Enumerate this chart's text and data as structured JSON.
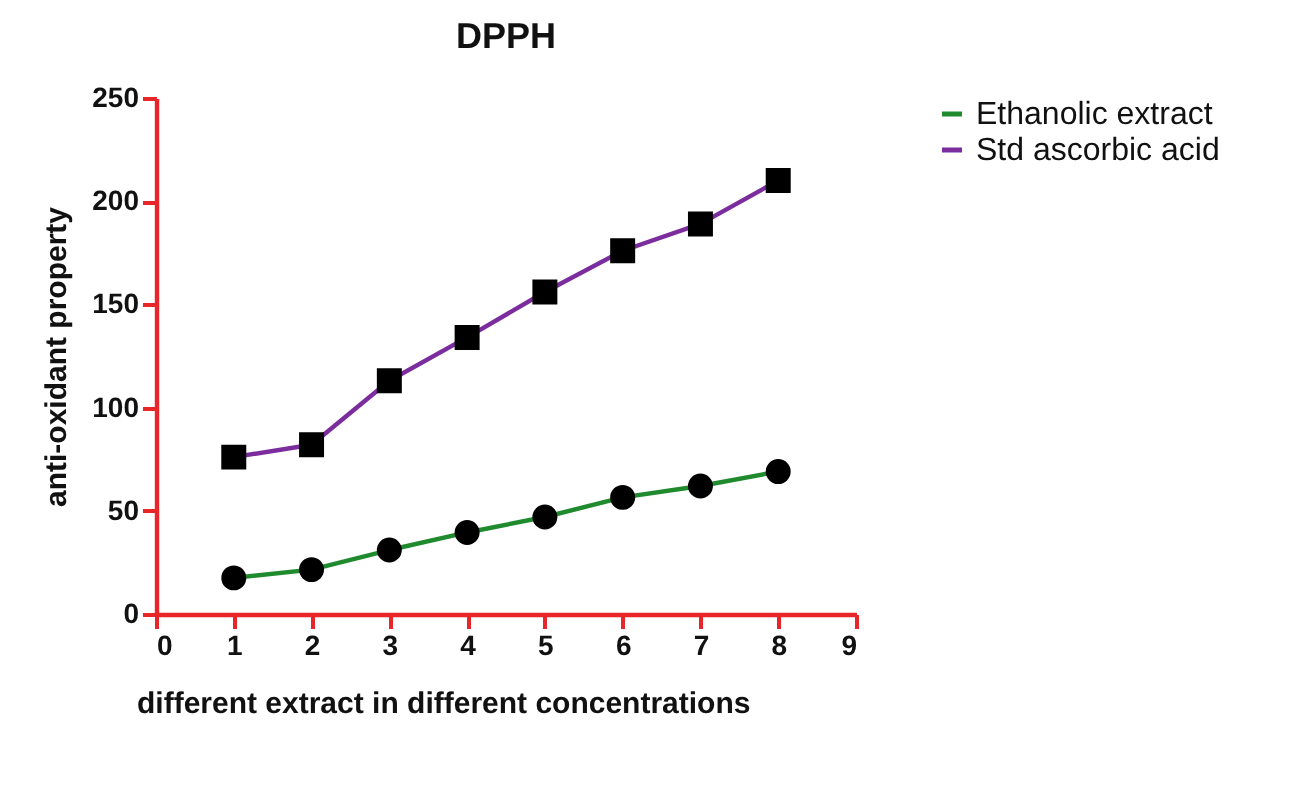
{
  "chart_data": {
    "type": "line",
    "title": "DPPH",
    "xlabel": "different extract in different concentrations",
    "ylabel": "anti-oxidant property",
    "x": [
      1,
      2,
      3,
      4,
      5,
      6,
      7,
      8
    ],
    "series": [
      {
        "name": "Ethanolic extract",
        "color": "#1f8a2e",
        "marker": "circle",
        "values": [
          17.5,
          21.5,
          31,
          39.5,
          47,
          56.5,
          62,
          69
        ]
      },
      {
        "name": "Std ascorbic acid",
        "color": "#7b2d9e",
        "marker": "square",
        "values": [
          76,
          82,
          113,
          134,
          156,
          176,
          189,
          210
        ]
      }
    ],
    "xlim": [
      0,
      9
    ],
    "xticks": [
      0,
      1,
      2,
      3,
      4,
      5,
      6,
      7,
      8,
      9
    ],
    "ylim": [
      0,
      250
    ],
    "yticks": [
      0,
      50,
      100,
      150,
      200,
      250
    ],
    "grid": false,
    "legend": "top right",
    "line_style": "solid"
  }
}
